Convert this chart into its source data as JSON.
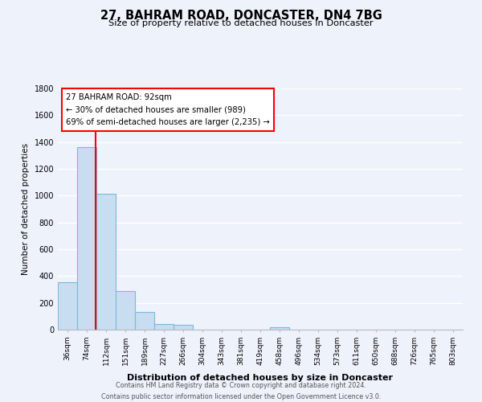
{
  "title": "27, BAHRAM ROAD, DONCASTER, DN4 7BG",
  "subtitle": "Size of property relative to detached houses in Doncaster",
  "xlabel": "Distribution of detached houses by size in Doncaster",
  "ylabel": "Number of detached properties",
  "bar_labels": [
    "36sqm",
    "74sqm",
    "112sqm",
    "151sqm",
    "189sqm",
    "227sqm",
    "266sqm",
    "304sqm",
    "343sqm",
    "381sqm",
    "419sqm",
    "458sqm",
    "496sqm",
    "534sqm",
    "573sqm",
    "611sqm",
    "650sqm",
    "688sqm",
    "726sqm",
    "765sqm",
    "803sqm"
  ],
  "bar_values": [
    355,
    1360,
    1015,
    290,
    130,
    45,
    35,
    0,
    0,
    0,
    0,
    20,
    0,
    0,
    0,
    0,
    0,
    0,
    0,
    0,
    0
  ],
  "bar_color": "#c9ddf0",
  "bar_edge_color": "#7db8da",
  "ylim": [
    0,
    1800
  ],
  "yticks": [
    0,
    200,
    400,
    600,
    800,
    1000,
    1200,
    1400,
    1600,
    1800
  ],
  "bin_left_sqm": [
    36,
    74,
    112,
    151,
    189,
    227,
    266,
    304,
    343,
    381,
    419,
    458,
    496,
    534,
    573,
    611,
    650,
    688,
    726,
    765,
    803
  ],
  "property_sqm": 92,
  "annotation_line1": "27 BAHRAM ROAD: 92sqm",
  "annotation_line2": "← 30% of detached houses are smaller (989)",
  "annotation_line3": "69% of semi-detached houses are larger (2,235) →",
  "bg_color": "#eef2fb",
  "grid_color": "#ffffff",
  "footer_line1": "Contains HM Land Registry data © Crown copyright and database right 2024.",
  "footer_line2": "Contains public sector information licensed under the Open Government Licence v3.0."
}
